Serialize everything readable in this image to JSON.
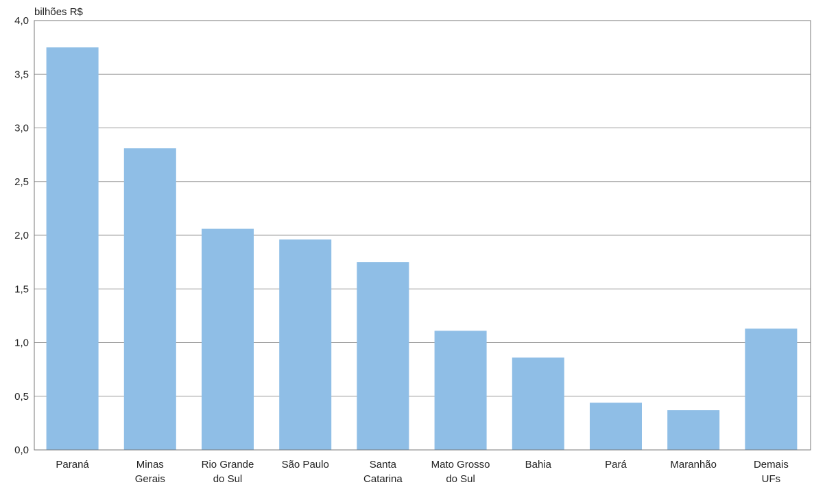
{
  "chart_data": {
    "type": "bar",
    "title": "",
    "ylabel": "bilhões R$",
    "xlabel": "",
    "ylim": [
      0,
      4
    ],
    "yticks": [
      0,
      0.5,
      1,
      1.5,
      2,
      2.5,
      3,
      3.5,
      4
    ],
    "ytick_labels": [
      "0,0",
      "0,5",
      "1,0",
      "1,5",
      "2,0",
      "2,5",
      "3,0",
      "3,5",
      "4,0"
    ],
    "categories": [
      [
        "Paraná"
      ],
      [
        "Minas",
        "Gerais"
      ],
      [
        "Rio Grande",
        "do Sul"
      ],
      [
        "São Paulo"
      ],
      [
        "Santa",
        "Catarina"
      ],
      [
        "Mato Grosso",
        "do Sul"
      ],
      [
        "Bahia"
      ],
      [
        "Pará"
      ],
      [
        "Maranhão"
      ],
      [
        "Demais",
        "UFs"
      ]
    ],
    "values": [
      3.75,
      2.81,
      2.06,
      1.96,
      1.75,
      1.11,
      0.86,
      0.44,
      0.37,
      1.13
    ],
    "grid": true,
    "colors": {
      "bar": "#8fbee6",
      "grid": "#9a9a9a",
      "axis": "#7a7a7a"
    }
  }
}
